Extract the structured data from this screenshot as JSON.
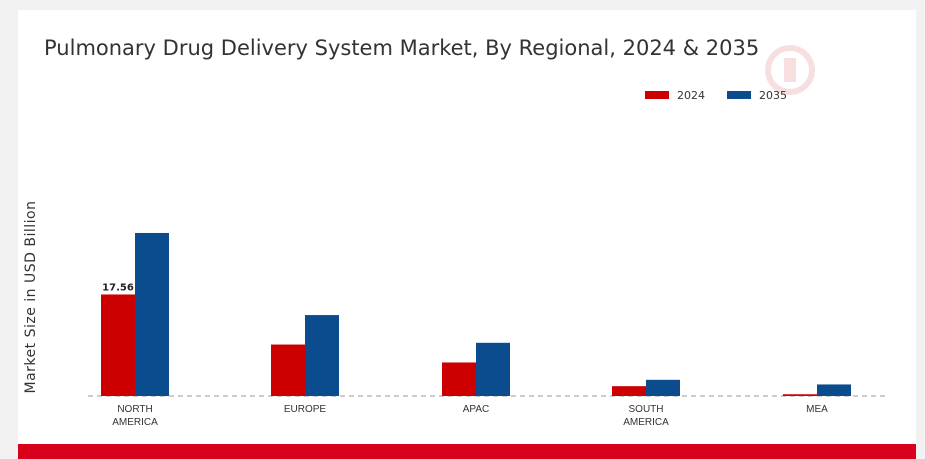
{
  "chart_data": {
    "type": "bar",
    "title": "Pulmonary Drug Delivery System Market, By Regional, 2024 & 2035",
    "ylabel": "Market Size in USD Billion",
    "xlabel": "",
    "categories": [
      "NORTH AMERICA",
      "EUROPE",
      "APAC",
      "SOUTH AMERICA",
      "MEA"
    ],
    "category_lines": [
      [
        "NORTH",
        "AMERICA"
      ],
      [
        "EUROPE"
      ],
      [
        "APAC"
      ],
      [
        "SOUTH",
        "AMERICA"
      ],
      [
        "MEA"
      ]
    ],
    "series": [
      {
        "name": "2024",
        "color": "#cc0000",
        "values": [
          17.56,
          8.9,
          5.8,
          1.7,
          0.3
        ]
      },
      {
        "name": "2035",
        "color": "#0b4c8f",
        "values": [
          28.2,
          14.0,
          9.2,
          2.8,
          2.0
        ]
      }
    ],
    "data_labels": [
      {
        "series": "2024",
        "category": "NORTH AMERICA",
        "text": "17.56"
      }
    ],
    "ylim": [
      0,
      32
    ],
    "grid": false,
    "legend_position": "top-right"
  }
}
